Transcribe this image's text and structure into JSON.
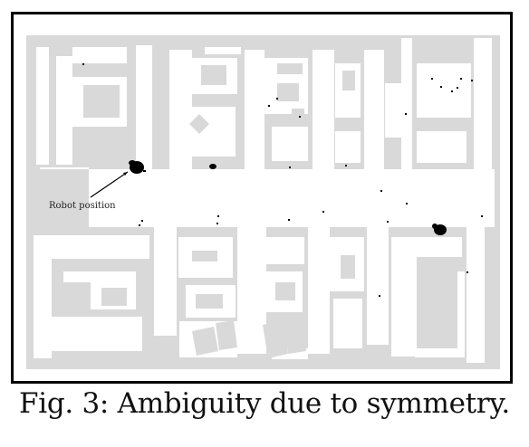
{
  "figure": {
    "annotation_label": "Robot position",
    "caption": "Fig. 3: Ambiguity due to symmetry.",
    "colors": {
      "frame": "#000000",
      "background": "#ffffff",
      "walls": "#d9d9d9",
      "particles": "#000000"
    }
  }
}
